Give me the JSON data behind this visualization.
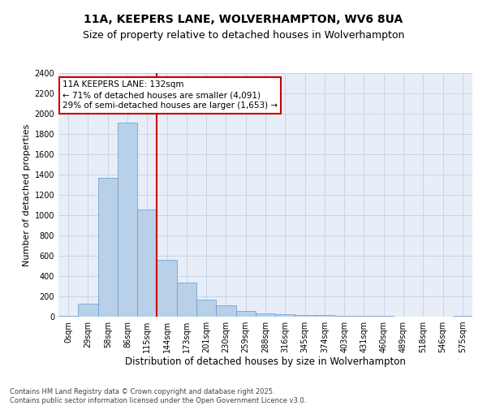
{
  "title1": "11A, KEEPERS LANE, WOLVERHAMPTON, WV6 8UA",
  "title2": "Size of property relative to detached houses in Wolverhampton",
  "xlabel": "Distribution of detached houses by size in Wolverhampton",
  "ylabel": "Number of detached properties",
  "bin_labels": [
    "0sqm",
    "29sqm",
    "58sqm",
    "86sqm",
    "115sqm",
    "144sqm",
    "173sqm",
    "201sqm",
    "230sqm",
    "259sqm",
    "288sqm",
    "316sqm",
    "345sqm",
    "374sqm",
    "403sqm",
    "431sqm",
    "460sqm",
    "489sqm",
    "518sqm",
    "546sqm",
    "575sqm"
  ],
  "bar_values": [
    10,
    130,
    1370,
    1910,
    1060,
    560,
    335,
    165,
    110,
    60,
    35,
    25,
    20,
    15,
    10,
    5,
    5,
    3,
    2,
    2,
    5
  ],
  "bar_color": "#b8d0e8",
  "bar_edgecolor": "#6699cc",
  "vline_x": 4.5,
  "vline_color": "#cc0000",
  "annotation_text": "11A KEEPERS LANE: 132sqm\n← 71% of detached houses are smaller (4,091)\n29% of semi-detached houses are larger (1,653) →",
  "annotation_box_color": "#cc0000",
  "annotation_bg": "#ffffff",
  "ylim": [
    0,
    2400
  ],
  "yticks": [
    0,
    200,
    400,
    600,
    800,
    1000,
    1200,
    1400,
    1600,
    1800,
    2000,
    2200,
    2400
  ],
  "grid_color": "#c8d4e8",
  "bg_color": "#e8eef8",
  "footer": "Contains HM Land Registry data © Crown copyright and database right 2025.\nContains public sector information licensed under the Open Government Licence v3.0.",
  "title1_fontsize": 10,
  "title2_fontsize": 9,
  "xlabel_fontsize": 8.5,
  "ylabel_fontsize": 8,
  "tick_fontsize": 7,
  "footer_fontsize": 6,
  "annot_fontsize": 7.5
}
